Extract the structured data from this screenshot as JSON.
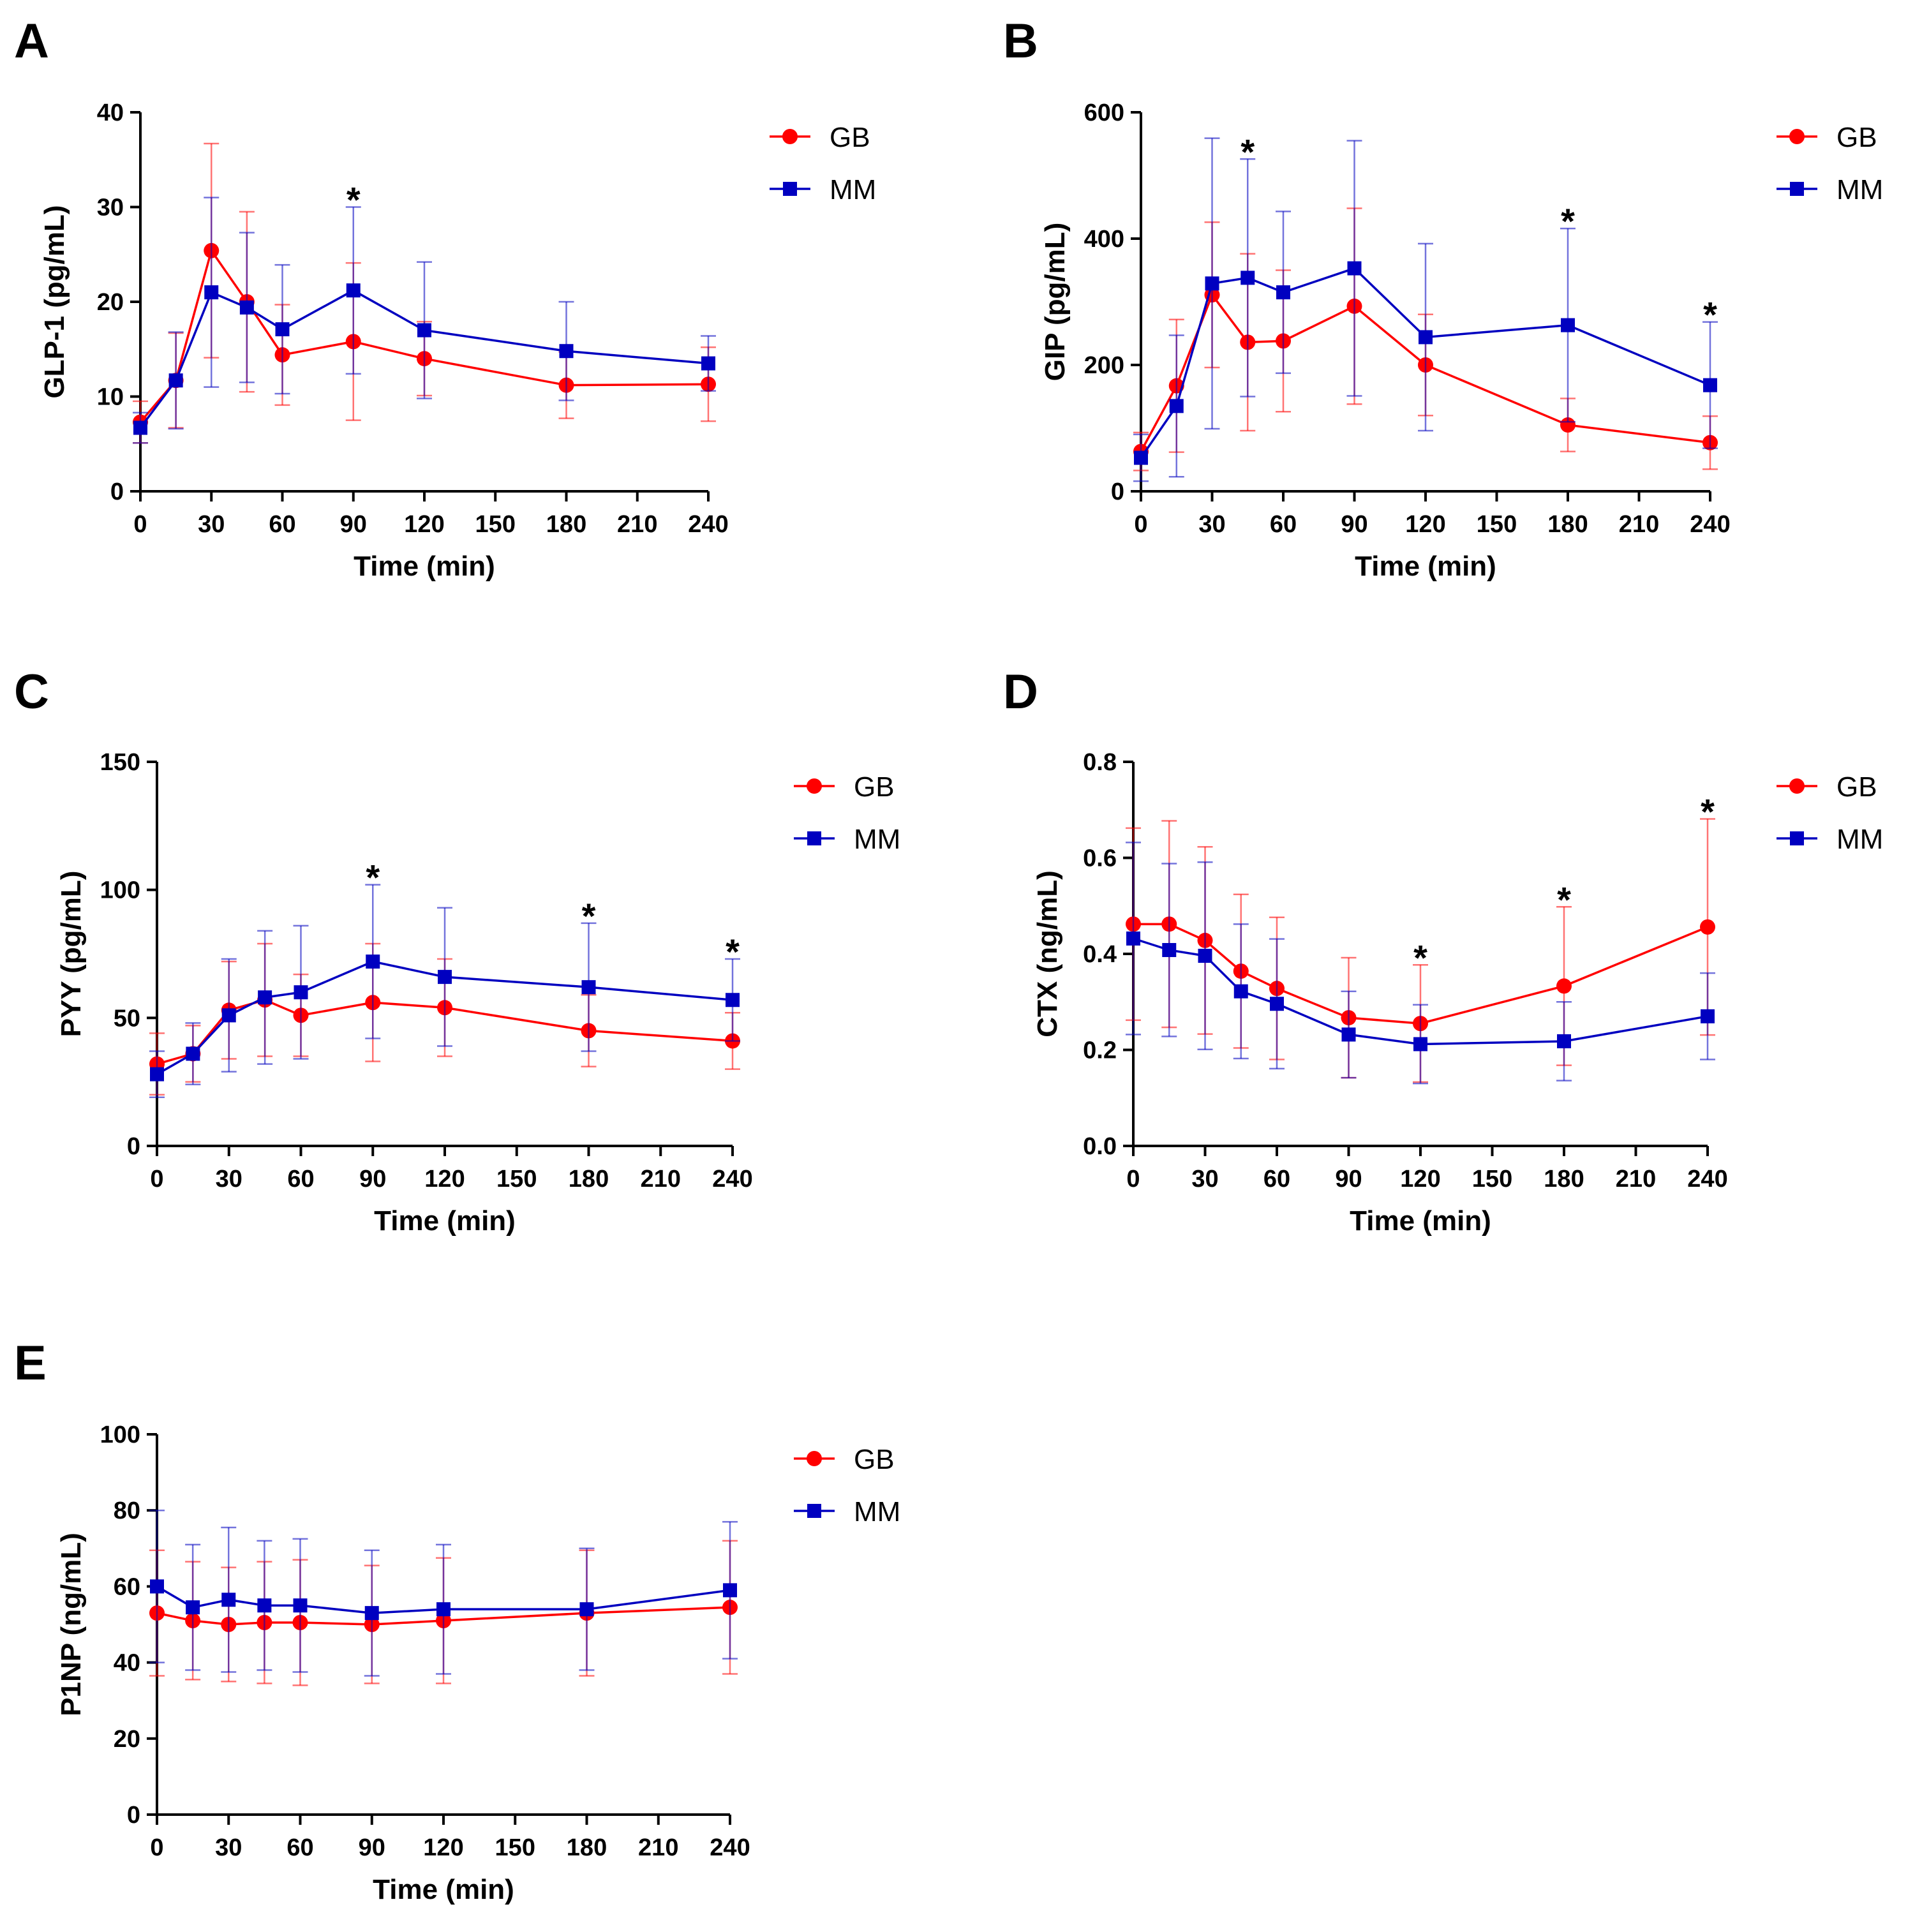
{
  "colors": {
    "GB": "#ff0000",
    "MM": "#0000c0",
    "axis": "#000000"
  },
  "chart_data": [
    {
      "panel": "A",
      "type": "line",
      "xlabel": "Time (min)",
      "ylabel": "GLP-1 (pg/mL)",
      "x": [
        0,
        15,
        30,
        45,
        60,
        90,
        120,
        180,
        240
      ],
      "xlim": [
        0,
        240
      ],
      "xticks": [
        0,
        30,
        60,
        90,
        120,
        150,
        180,
        210,
        240
      ],
      "ylim": [
        0,
        40
      ],
      "yticks": [
        0,
        10,
        20,
        30,
        40
      ],
      "ytick_labels": [
        "0",
        "10",
        "20",
        "30",
        "40"
      ],
      "legend": [
        "GB",
        "MM"
      ],
      "legend_position": "top-right",
      "series": [
        {
          "name": "GB",
          "marker": "circle",
          "values": [
            7.3,
            11.7,
            25.4,
            20.0,
            14.4,
            15.8,
            14.0,
            11.2,
            11.3
          ],
          "error": [
            2.2,
            5.0,
            11.3,
            9.5,
            5.3,
            8.3,
            3.9,
            3.5,
            3.9
          ]
        },
        {
          "name": "MM",
          "marker": "square",
          "values": [
            6.7,
            11.7,
            21.0,
            19.4,
            17.1,
            21.2,
            17.0,
            14.8,
            13.5
          ],
          "error": [
            1.6,
            5.1,
            10.0,
            7.9,
            6.8,
            8.8,
            7.2,
            5.2,
            2.9
          ]
        }
      ],
      "significance": [
        {
          "x": 90,
          "label": "*"
        }
      ]
    },
    {
      "panel": "B",
      "type": "line",
      "xlabel": "Time (min)",
      "ylabel": "GIP (pg/mL)",
      "x": [
        0,
        15,
        30,
        45,
        60,
        90,
        120,
        180,
        240
      ],
      "xlim": [
        0,
        240
      ],
      "xticks": [
        0,
        30,
        60,
        90,
        120,
        150,
        180,
        210,
        240
      ],
      "ylim": [
        0,
        600
      ],
      "yticks": [
        0,
        200,
        400,
        600
      ],
      "ytick_labels": [
        "0",
        "200",
        "400",
        "600"
      ],
      "legend": [
        "GB",
        "MM"
      ],
      "legend_position": "top-right",
      "series": [
        {
          "name": "GB",
          "marker": "circle",
          "values": [
            63,
            167,
            311,
            236,
            238,
            293,
            200,
            105,
            77
          ],
          "error": [
            30,
            105,
            115,
            140,
            112,
            155,
            80,
            42,
            42
          ]
        },
        {
          "name": "MM",
          "marker": "square",
          "values": [
            53,
            135,
            329,
            338,
            315,
            353,
            244,
            263,
            168
          ],
          "error": [
            37,
            112,
            230,
            188,
            128,
            202,
            148,
            153,
            100
          ]
        }
      ],
      "significance": [
        {
          "x": 45,
          "label": "*"
        },
        {
          "x": 180,
          "label": "*"
        },
        {
          "x": 240,
          "label": "*"
        }
      ]
    },
    {
      "panel": "C",
      "type": "line",
      "xlabel": "Time (min)",
      "ylabel": "PYY (pg/mL)",
      "x": [
        0,
        15,
        30,
        45,
        60,
        90,
        120,
        180,
        240
      ],
      "xlim": [
        0,
        240
      ],
      "xticks": [
        0,
        30,
        60,
        90,
        120,
        150,
        180,
        210,
        240
      ],
      "ylim": [
        0,
        150
      ],
      "yticks": [
        0,
        50,
        100,
        150
      ],
      "ytick_labels": [
        "0",
        "50",
        "100",
        "150"
      ],
      "legend": [
        "GB",
        "MM"
      ],
      "legend_position": "top-right",
      "series": [
        {
          "name": "GB",
          "marker": "circle",
          "values": [
            32,
            36,
            53,
            57,
            51,
            56,
            54,
            45,
            41
          ],
          "error": [
            12,
            11,
            19,
            22,
            16,
            23,
            19,
            14,
            11
          ]
        },
        {
          "name": "MM",
          "marker": "square",
          "values": [
            28,
            36,
            51,
            58,
            60,
            72,
            66,
            62,
            57
          ],
          "error": [
            9,
            12,
            22,
            26,
            26,
            30,
            27,
            25,
            16
          ]
        }
      ],
      "significance": [
        {
          "x": 90,
          "label": "*"
        },
        {
          "x": 180,
          "label": "*"
        },
        {
          "x": 240,
          "label": "*"
        }
      ]
    },
    {
      "panel": "D",
      "type": "line",
      "xlabel": "Time (min)",
      "ylabel": "CTX (ng/mL)",
      "x": [
        0,
        15,
        30,
        45,
        60,
        90,
        120,
        180,
        240
      ],
      "xlim": [
        0,
        240
      ],
      "xticks": [
        0,
        30,
        60,
        90,
        120,
        150,
        180,
        210,
        240
      ],
      "ylim": [
        0,
        0.8
      ],
      "yticks": [
        0,
        0.2,
        0.4,
        0.6,
        0.8
      ],
      "ytick_labels": [
        "0.0",
        "0.2",
        "0.4",
        "0.6",
        "0.8"
      ],
      "legend": [
        "GB",
        "MM"
      ],
      "legend_position": "top-right",
      "series": [
        {
          "name": "GB",
          "marker": "circle",
          "values": [
            0.462,
            0.462,
            0.428,
            0.364,
            0.328,
            0.267,
            0.255,
            0.333,
            0.456
          ],
          "error": [
            0.2,
            0.215,
            0.195,
            0.16,
            0.148,
            0.125,
            0.122,
            0.165,
            0.225
          ]
        },
        {
          "name": "MM",
          "marker": "square",
          "values": [
            0.432,
            0.408,
            0.396,
            0.322,
            0.296,
            0.232,
            0.212,
            0.218,
            0.27
          ],
          "error": [
            0.2,
            0.18,
            0.195,
            0.14,
            0.135,
            0.09,
            0.082,
            0.082,
            0.09
          ]
        }
      ],
      "significance": [
        {
          "x": 120,
          "label": "*"
        },
        {
          "x": 180,
          "label": "*"
        },
        {
          "x": 240,
          "label": "*"
        }
      ]
    },
    {
      "panel": "E",
      "type": "line",
      "xlabel": "Time (min)",
      "ylabel": "P1NP (ng/mL)",
      "x": [
        0,
        15,
        30,
        45,
        60,
        90,
        120,
        180,
        240
      ],
      "xlim": [
        0,
        240
      ],
      "xticks": [
        0,
        30,
        60,
        90,
        120,
        150,
        180,
        210,
        240
      ],
      "ylim": [
        0,
        100
      ],
      "yticks": [
        0,
        20,
        40,
        60,
        80,
        100
      ],
      "ytick_labels": [
        "0",
        "20",
        "40",
        "60",
        "80",
        "100"
      ],
      "legend": [
        "GB",
        "MM"
      ],
      "legend_position": "top-right",
      "series": [
        {
          "name": "GB",
          "marker": "circle",
          "values": [
            53,
            51,
            50,
            50.5,
            50.5,
            50,
            51,
            53,
            54.5
          ],
          "error": [
            16.5,
            15.5,
            15,
            16,
            16.5,
            15.5,
            16.5,
            16.5,
            17.5
          ]
        },
        {
          "name": "MM",
          "marker": "square",
          "values": [
            60,
            54.5,
            56.5,
            55,
            55,
            53,
            54,
            54,
            59
          ],
          "error": [
            20,
            16.5,
            19,
            17,
            17.5,
            16.5,
            17,
            16,
            18
          ]
        }
      ],
      "significance": []
    }
  ]
}
